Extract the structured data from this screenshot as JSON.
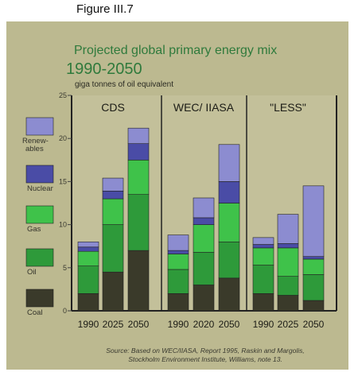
{
  "figure_label": "Figure III.7",
  "chart_data": {
    "type": "bar",
    "stacked": true,
    "title": "Projected global primary energy mix",
    "subtitle": "1990-2050",
    "ylabel": "giga tonnes of oil equivalent",
    "ylim": [
      0,
      25
    ],
    "yticks": [
      0,
      5,
      10,
      15,
      20,
      25
    ],
    "groups": [
      {
        "name": "CDS",
        "years": [
          "1990",
          "2025",
          "2050"
        ]
      },
      {
        "name": "WEC/ IIASA",
        "years": [
          "1990",
          "2020",
          "2050"
        ]
      },
      {
        "name": "\"LESS\"",
        "years": [
          "1990",
          "2025",
          "2050"
        ]
      }
    ],
    "series": [
      {
        "name": "Coal",
        "color": "#3a3a2a",
        "values": [
          2.0,
          4.5,
          7.0,
          2.0,
          3.0,
          3.8,
          2.0,
          1.8,
          1.2
        ]
      },
      {
        "name": "Oil",
        "color": "#2e9a3a",
        "values": [
          3.2,
          5.5,
          6.5,
          2.8,
          3.8,
          4.2,
          3.3,
          2.2,
          3.0
        ]
      },
      {
        "name": "Gas",
        "color": "#3fc24a",
        "values": [
          1.7,
          3.0,
          4.0,
          1.8,
          3.2,
          4.5,
          2.0,
          3.3,
          1.8
        ]
      },
      {
        "name": "Nuclear",
        "color": "#4a4ca6",
        "values": [
          0.5,
          0.9,
          1.9,
          0.4,
          0.8,
          2.5,
          0.4,
          0.5,
          0.3
        ]
      },
      {
        "name": "Renew-\nables",
        "color": "#8c8cd0",
        "values": [
          0.6,
          1.5,
          1.8,
          1.8,
          2.3,
          4.3,
          0.8,
          3.4,
          8.2
        ]
      }
    ],
    "source": [
      "Source: Based on WEC/IIASA, Report 1995, Raskin and Margolis,",
      "Stockholm Environment Institute, Williams, note 13."
    ]
  }
}
